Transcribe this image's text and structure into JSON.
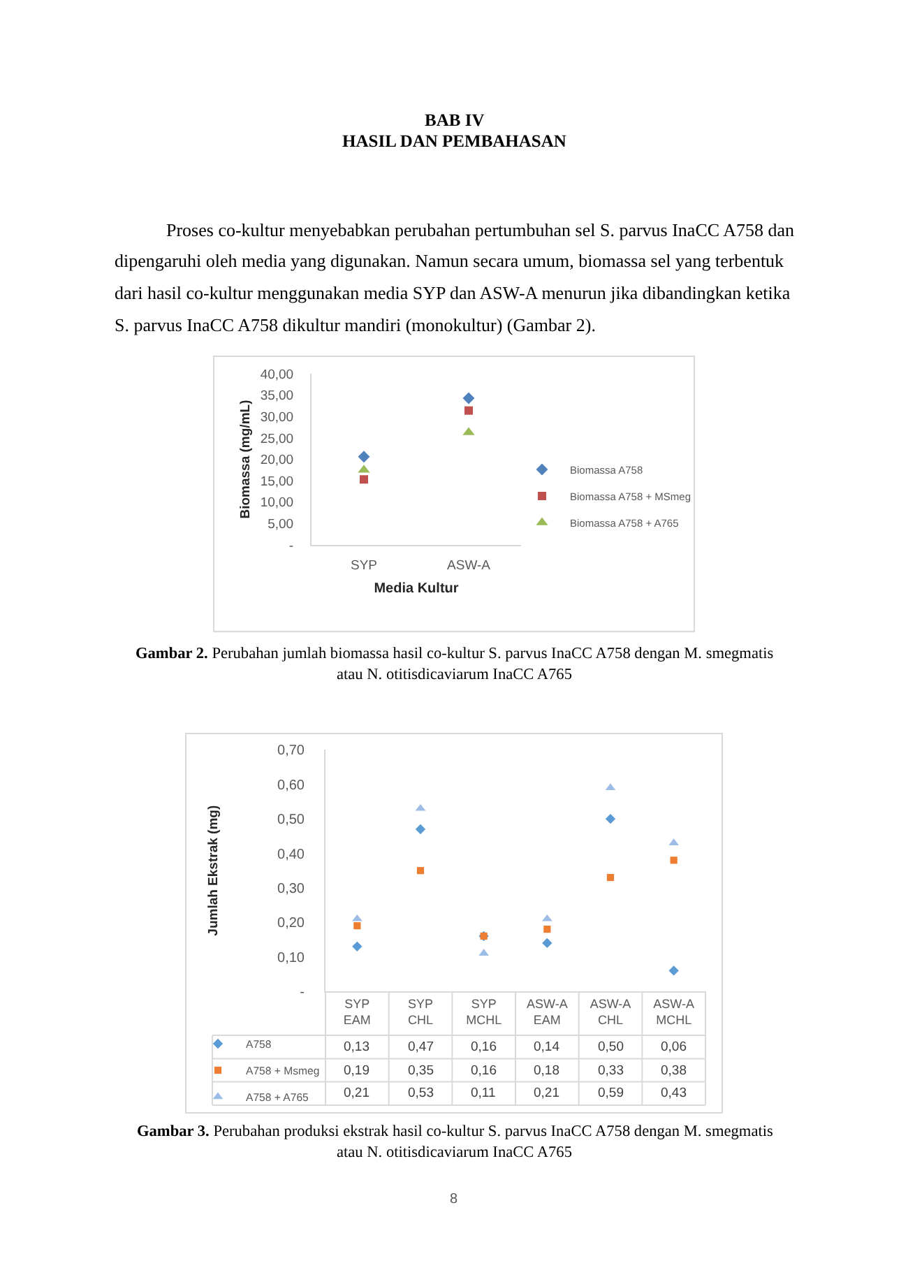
{
  "chart_data": [
    {
      "type": "scatter",
      "annotations": [
        "BAB IV",
        "HASIL DAN PEMBAHASAN",
        "Proses co-kultur menyebabkan perubahan pertumbuhan sel S. parvus InaCC A758 dan dipengaruhi oleh media yang digunakan. Namun secara umum, biomassa sel yang terbentuk dari hasil co-kultur menggunakan media SYP dan ASW-A menurun jika dibandingkan ketika S. parvus InaCC A758 dikultur mandiri (monokultur) (Gambar 2).",
        "Gambar 2. Perubahan jumlah biomassa hasil co-kultur S. parvus InaCC A758 dengan M. smegmatis atau N. otitisdicaviarum InaCC A765"
      ],
      "xlabel": "Media Kultur",
      "ylabel": "Biomassa (mg/mL)",
      "categories": [
        "SYP",
        "ASW-A"
      ],
      "series": [
        {
          "name": "Biomassa A758",
          "color": "#4f81bd",
          "marker": "diamond",
          "values": [
            20.6,
            34.3
          ]
        },
        {
          "name": "Biomassa A758 + MSmeg",
          "color": "#c0504d",
          "marker": "square",
          "values": [
            15.3,
            31.4
          ]
        },
        {
          "name": "Biomassa A758 + A765",
          "color": "#9bbb59",
          "marker": "triangle",
          "values": [
            17.5,
            26.3
          ]
        }
      ],
      "ylim": [
        0,
        40
      ],
      "yticks": [
        {
          "value": 0,
          "label": "-"
        },
        {
          "value": 5,
          "label": "5,00"
        },
        {
          "value": 10,
          "label": "10,00"
        },
        {
          "value": 15,
          "label": "15,00"
        },
        {
          "value": 20,
          "label": "20,00"
        },
        {
          "value": 25,
          "label": "25,00"
        },
        {
          "value": 30,
          "label": "30,00"
        },
        {
          "value": 35,
          "label": "35,00"
        },
        {
          "value": 40,
          "label": "40,00"
        }
      ],
      "legend": "right"
    },
    {
      "type": "scatter",
      "annotations": [
        "Gambar 3. Perubahan produksi ekstrak hasil co-kultur S. parvus InaCC A758 dengan M. smegmatis atau N. otitisdicaviarum InaCC A765",
        "8"
      ],
      "ylabel": "Jumlah Ekstrak (mg)",
      "categories": [
        "SYP EAM",
        "SYP CHL",
        "SYP MCHL",
        "ASW-A EAM",
        "ASW-A CHL",
        "ASW-A MCHL"
      ],
      "series": [
        {
          "name": "A758",
          "color": "#5b9bd5",
          "marker": "diamond",
          "values": [
            0.13,
            0.47,
            0.16,
            0.14,
            0.5,
            0.06
          ],
          "value_labels": [
            "0,13",
            "0,47",
            "0,16",
            "0,14",
            "0,50",
            "0,06"
          ]
        },
        {
          "name": "A758 + Msmeg",
          "color": "#ed7d31",
          "marker": "square",
          "values": [
            0.19,
            0.35,
            0.16,
            0.18,
            0.33,
            0.38
          ],
          "value_labels": [
            "0,19",
            "0,35",
            "0,16",
            "0,18",
            "0,33",
            "0,38"
          ]
        },
        {
          "name": "A758 + A765",
          "color": "#9dbde6",
          "marker": "triangle",
          "values": [
            0.21,
            0.53,
            0.11,
            0.21,
            0.59,
            0.43
          ],
          "value_labels": [
            "0,21",
            "0,53",
            "0,11",
            "0,21",
            "0,59",
            "0,43"
          ]
        }
      ],
      "ylim": [
        0,
        0.7
      ],
      "yticks": [
        {
          "value": 0,
          "label": "-"
        },
        {
          "value": 0.1,
          "label": "0,10"
        },
        {
          "value": 0.2,
          "label": "0,20"
        },
        {
          "value": 0.3,
          "label": "0,30"
        },
        {
          "value": 0.4,
          "label": "0,40"
        },
        {
          "value": 0.5,
          "label": "0,50"
        },
        {
          "value": 0.6,
          "label": "0,60"
        },
        {
          "value": 0.7,
          "label": "0,70"
        }
      ],
      "legend": "bottom"
    }
  ]
}
